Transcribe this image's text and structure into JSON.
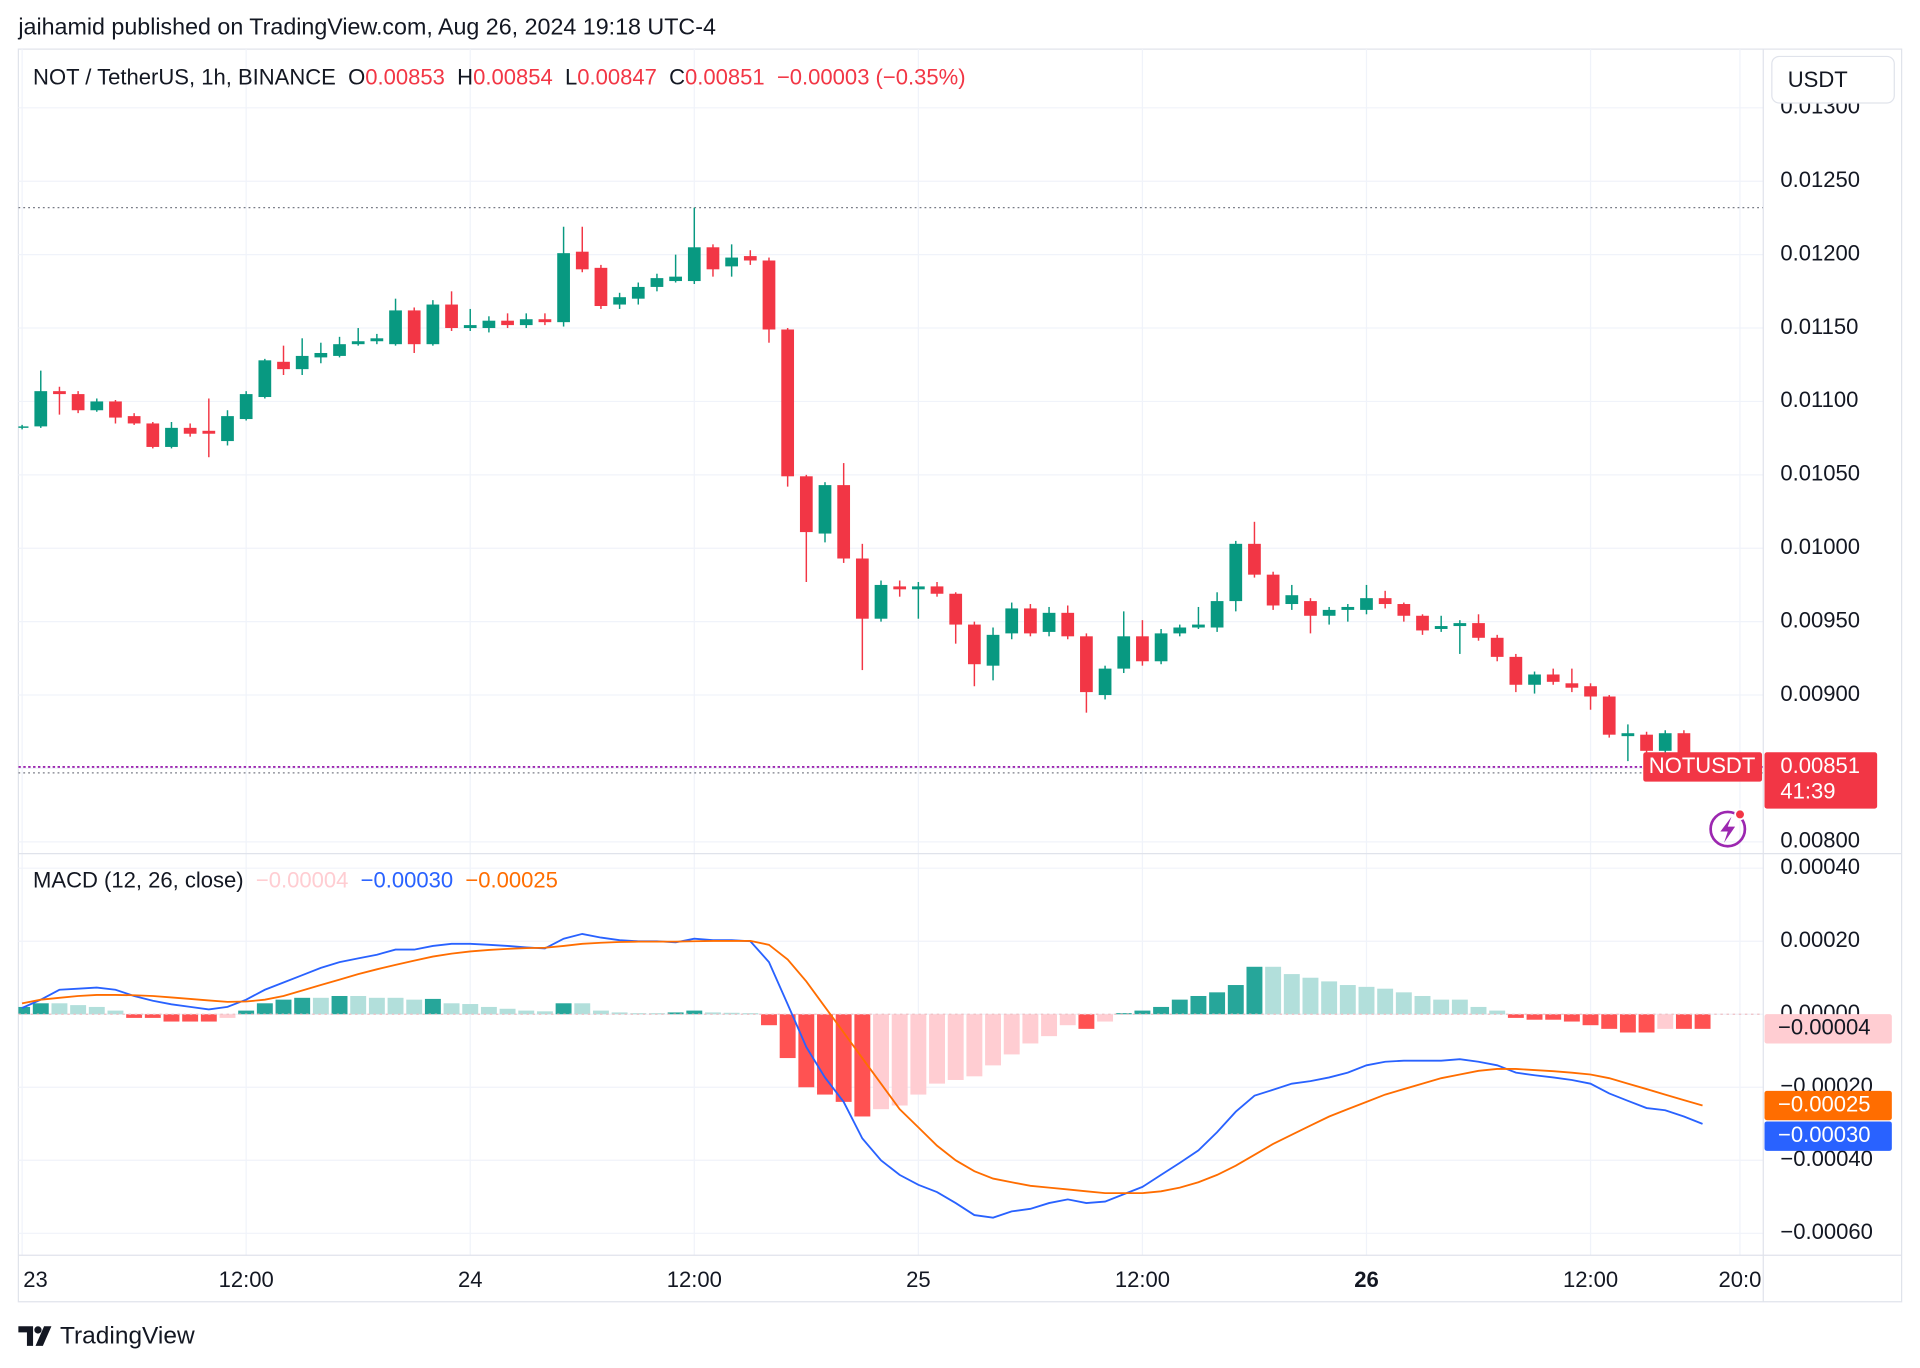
{
  "header": {
    "byline": "jaihamid published on TradingView.com, Aug 26, 2024 19:18 UTC-4",
    "footer": "TradingView"
  },
  "chart_data": {
    "type": "candlestick",
    "title": "NOT / TetherUS, 1h, BINANCE",
    "ohlc_labels": [
      "O",
      "H",
      "L",
      "C"
    ],
    "change_label": "−0.00003 (−0.35%)",
    "currency": "USDT",
    "symbol": "NOTUSDT",
    "countdown": "41:39",
    "up_color": "#089981",
    "down_color": "#f23645",
    "last_line_color": "#9c27b0",
    "range_line_color": "#787b86",
    "open": [
      0.01082,
      0.01083,
      0.01107,
      0.01105,
      0.01094,
      0.011,
      0.0109,
      0.01085,
      0.01069,
      0.01082,
      0.0108,
      0.01073,
      0.01088,
      0.01103,
      0.01127,
      0.01122,
      0.0113,
      0.01131,
      0.01139,
      0.01141,
      0.01139,
      0.01162,
      0.01139,
      0.01166,
      0.0115,
      0.0115,
      0.01155,
      0.01152,
      0.01156,
      0.01154,
      0.01202,
      0.01191,
      0.01166,
      0.0117,
      0.01178,
      0.01182,
      0.01182,
      0.01205,
      0.01192,
      0.01199,
      0.01196,
      0.01149,
      0.01049,
      0.0101,
      0.01043,
      0.00993,
      0.00952,
      0.00974,
      0.00972,
      0.00974,
      0.00969,
      0.00948,
      0.0092,
      0.00942,
      0.00959,
      0.00943,
      0.00956,
      0.0094,
      0.009,
      0.00918,
      0.0094,
      0.00923,
      0.00942,
      0.00946,
      0.00946,
      0.00964,
      0.01003,
      0.00982,
      0.00962,
      0.00964,
      0.00954,
      0.00958,
      0.00958,
      0.00966,
      0.00962,
      0.00954,
      0.00945,
      0.00947,
      0.00949,
      0.00939,
      0.00926,
      0.00907,
      0.00914,
      0.00908,
      0.00906,
      0.00899,
      0.00872,
      0.00873,
      0.00862,
      0.00874,
      0.00853
    ],
    "high": [
      0.01084,
      0.01121,
      0.0111,
      0.01107,
      0.01102,
      0.01101,
      0.01092,
      0.01086,
      0.01086,
      0.01085,
      0.01102,
      0.01094,
      0.01107,
      0.01129,
      0.01138,
      0.01143,
      0.0114,
      0.01144,
      0.0115,
      0.01146,
      0.0117,
      0.01164,
      0.01169,
      0.01175,
      0.01163,
      0.01158,
      0.0116,
      0.0116,
      0.0116,
      0.01219,
      0.01219,
      0.01193,
      0.01174,
      0.01181,
      0.01187,
      0.012,
      0.01232,
      0.01207,
      0.01207,
      0.01203,
      0.01198,
      0.0115,
      0.0105,
      0.01045,
      0.01058,
      0.01003,
      0.00978,
      0.00978,
      0.00977,
      0.00977,
      0.0097,
      0.0095,
      0.00946,
      0.00963,
      0.00962,
      0.0096,
      0.00961,
      0.00942,
      0.0092,
      0.00957,
      0.00951,
      0.00945,
      0.00948,
      0.0096,
      0.0097,
      0.01005,
      0.01018,
      0.00984,
      0.00975,
      0.00966,
      0.0096,
      0.00962,
      0.00975,
      0.00971,
      0.00963,
      0.00955,
      0.00954,
      0.00951,
      0.00955,
      0.00941,
      0.00928,
      0.00916,
      0.00918,
      0.00918,
      0.00908,
      0.009,
      0.0088,
      0.00875,
      0.00876,
      0.00876,
      0.00854
    ],
    "low": [
      0.01081,
      0.01082,
      0.01091,
      0.01092,
      0.01093,
      0.01085,
      0.01084,
      0.01068,
      0.01068,
      0.01076,
      0.01062,
      0.0107,
      0.01087,
      0.01102,
      0.01118,
      0.01118,
      0.01126,
      0.0113,
      0.01138,
      0.01139,
      0.01138,
      0.01133,
      0.01138,
      0.01148,
      0.01148,
      0.01147,
      0.0115,
      0.0115,
      0.01152,
      0.01151,
      0.01188,
      0.01163,
      0.01163,
      0.01166,
      0.01175,
      0.01181,
      0.0118,
      0.01185,
      0.01185,
      0.01193,
      0.0114,
      0.01042,
      0.00977,
      0.01004,
      0.0099,
      0.00917,
      0.0095,
      0.00967,
      0.00952,
      0.00967,
      0.00935,
      0.00906,
      0.0091,
      0.00938,
      0.0094,
      0.0094,
      0.00938,
      0.00888,
      0.00897,
      0.00915,
      0.0092,
      0.00921,
      0.0094,
      0.00945,
      0.00943,
      0.00957,
      0.0098,
      0.00958,
      0.00958,
      0.00942,
      0.00948,
      0.0095,
      0.00955,
      0.00959,
      0.0095,
      0.00941,
      0.00943,
      0.00928,
      0.00937,
      0.00923,
      0.00902,
      0.00901,
      0.00907,
      0.00902,
      0.0089,
      0.00871,
      0.00855,
      0.0086,
      0.00858,
      0.00851,
      0.00847
    ],
    "close": [
      0.01083,
      0.01107,
      0.01105,
      0.01094,
      0.011,
      0.01089,
      0.01085,
      0.01069,
      0.01082,
      0.01078,
      0.01078,
      0.0109,
      0.01105,
      0.01128,
      0.01122,
      0.01131,
      0.01133,
      0.01139,
      0.01141,
      0.01143,
      0.01162,
      0.01139,
      0.01166,
      0.0115,
      0.01152,
      0.01155,
      0.01152,
      0.01156,
      0.01154,
      0.01201,
      0.0119,
      0.01165,
      0.01171,
      0.01178,
      0.01184,
      0.01185,
      0.01205,
      0.0119,
      0.01198,
      0.01196,
      0.01149,
      0.01049,
      0.01011,
      0.01043,
      0.00993,
      0.00952,
      0.00975,
      0.00972,
      0.00974,
      0.00969,
      0.00948,
      0.00921,
      0.00941,
      0.00959,
      0.00942,
      0.00956,
      0.0094,
      0.00902,
      0.00918,
      0.0094,
      0.00923,
      0.00942,
      0.00946,
      0.00948,
      0.00964,
      0.01003,
      0.00982,
      0.00961,
      0.00968,
      0.00954,
      0.00958,
      0.0096,
      0.00966,
      0.00962,
      0.00954,
      0.00944,
      0.00947,
      0.00949,
      0.00939,
      0.00926,
      0.00907,
      0.00914,
      0.00909,
      0.00905,
      0.00899,
      0.00873,
      0.00874,
      0.00862,
      0.00874,
      0.00853,
      0.00851
    ],
    "ylim": [
      0.00792,
      0.0134
    ],
    "yticks": [
      {
        "value": 0.013,
        "label": "0.01300"
      },
      {
        "value": 0.0125,
        "label": "0.01250"
      },
      {
        "value": 0.012,
        "label": "0.01200"
      },
      {
        "value": 0.0115,
        "label": "0.01150"
      },
      {
        "value": 0.011,
        "label": "0.01100"
      },
      {
        "value": 0.0105,
        "label": "0.01050"
      },
      {
        "value": 0.01,
        "label": "0.01000"
      },
      {
        "value": 0.0095,
        "label": "0.00950"
      },
      {
        "value": 0.009,
        "label": "0.00900"
      },
      {
        "value": 0.0085,
        "label": "0.00850"
      },
      {
        "value": 0.008,
        "label": "0.00800"
      }
    ],
    "xlim": [
      -0.2,
      93.25
    ],
    "xticks": [
      {
        "value": 0,
        "label": "23"
      },
      {
        "value": 12,
        "label": "12:00"
      },
      {
        "value": 24,
        "label": "24"
      },
      {
        "value": 36,
        "label": "12:00"
      },
      {
        "value": 48,
        "label": "25"
      },
      {
        "value": 60,
        "label": "12:00"
      },
      {
        "value": 72,
        "label": "26"
      },
      {
        "value": 84,
        "label": "12:00"
      },
      {
        "value": 92,
        "label": "20:0"
      }
    ],
    "grid": true,
    "indicator": {
      "type": "macd",
      "title": "MACD (12, 26, close)",
      "ylim": [
        -0.00066,
        0.00044
      ],
      "yticks": [
        {
          "value": 0.0004,
          "label": "0.00040"
        },
        {
          "value": 0.0002,
          "label": "0.00020"
        },
        {
          "value": 0,
          "label": "0.00000"
        },
        {
          "value": -0.0002,
          "label": "−0.00020"
        },
        {
          "value": -0.0004,
          "label": "−0.00040"
        },
        {
          "value": -0.0006,
          "label": "−0.00060"
        }
      ],
      "histogram": {
        "colors": {
          "grow_above": "#26a69a",
          "fall_above": "#b2dfdb",
          "grow_below": "#ffcdd2",
          "fall_below": "#ff5252"
        },
        "last_label": "−0.00004",
        "values": [
          2e-05,
          3e-05,
          3e-05,
          2.5e-05,
          2e-05,
          1e-05,
          -1e-05,
          -1e-05,
          -2e-05,
          -2e-05,
          -2e-05,
          -1e-05,
          1e-05,
          3e-05,
          4e-05,
          4.5e-05,
          4.5e-05,
          5e-05,
          5e-05,
          4.5e-05,
          4.5e-05,
          4e-05,
          4.2e-05,
          3e-05,
          2.8e-05,
          2e-05,
          1.5e-05,
          1e-05,
          8e-06,
          3e-05,
          3e-05,
          1e-05,
          5e-06,
          3e-06,
          3e-06,
          5e-06,
          1e-05,
          5e-06,
          4e-06,
          3e-06,
          -3e-05,
          -0.00012,
          -0.0002,
          -0.00022,
          -0.00024,
          -0.00028,
          -0.00026,
          -0.00025,
          -0.00022,
          -0.00019,
          -0.00018,
          -0.00017,
          -0.00014,
          -0.00011,
          -8e-05,
          -6e-05,
          -3e-05,
          -4e-05,
          -2e-05,
          3e-06,
          1e-05,
          2e-05,
          4e-05,
          5e-05,
          6e-05,
          8e-05,
          0.00013,
          0.00013,
          0.00011,
          0.0001,
          9e-05,
          8e-05,
          7.5e-05,
          7e-05,
          6e-05,
          5e-05,
          4e-05,
          4e-05,
          2e-05,
          1e-05,
          -1e-05,
          -1.5e-05,
          -1.5e-05,
          -2e-05,
          -3e-05,
          -4e-05,
          -5e-05,
          -5e-05,
          -4e-05,
          -4e-05,
          -4e-05
        ]
      },
      "series": [
        {
          "color": "#2962ff",
          "last_label": "−0.00030",
          "values": [
            1.7e-05,
            4e-05,
            6.7e-05,
            7e-05,
            7.3e-05,
            6.7e-05,
            5e-05,
            3.7e-05,
            2.7e-05,
            2e-05,
            1.3e-05,
            2e-05,
            4e-05,
            6.7e-05,
            8.7e-05,
            0.000107,
            0.000127,
            0.000143,
            0.000153,
            0.000163,
            0.000177,
            0.000177,
            0.000187,
            0.000193,
            0.000193,
            0.00019,
            0.000187,
            0.000183,
            0.00018,
            0.000207,
            0.00022,
            0.00021,
            0.000203,
            0.0002,
            0.0002,
            0.000197,
            0.000207,
            0.000203,
            0.000203,
            0.0002,
            0.000143,
            2.7e-05,
            -9e-05,
            -0.000173,
            -0.00024,
            -0.00034,
            -0.0004,
            -0.00044,
            -0.000467,
            -0.000487,
            -0.000517,
            -0.00055,
            -0.000557,
            -0.00054,
            -0.000533,
            -0.000517,
            -0.000507,
            -0.000517,
            -0.000513,
            -0.000493,
            -0.000473,
            -0.00044,
            -0.000407,
            -0.000373,
            -0.000323,
            -0.000267,
            -0.000223,
            -0.000207,
            -0.00019,
            -0.000183,
            -0.000173,
            -0.00016,
            -0.00014,
            -0.00013,
            -0.000127,
            -0.000127,
            -0.000127,
            -0.000123,
            -0.00013,
            -0.00014,
            -0.00016,
            -0.000167,
            -0.000173,
            -0.00018,
            -0.00019,
            -0.000217,
            -0.000237,
            -0.000257,
            -0.000263,
            -0.00028,
            -0.0003
          ]
        },
        {
          "color": "#ff6d00",
          "last_label": "−0.00025",
          "values": [
            3e-05,
            4e-05,
            4.5e-05,
            5e-05,
            5.3e-05,
            5.3e-05,
            5.2e-05,
            5e-05,
            4.6e-05,
            4.2e-05,
            3.8e-05,
            3.4e-05,
            3.5e-05,
            4e-05,
            5e-05,
            6.5e-05,
            8e-05,
            9.5e-05,
            0.00011,
            0.000123,
            0.000135,
            0.000147,
            0.000158,
            0.000166,
            0.000172,
            0.000176,
            0.000179,
            0.000181,
            0.000182,
            0.000187,
            0.000193,
            0.000196,
            0.000198,
            0.000199,
            0.000199,
            0.000199,
            0.0002,
            0.000201,
            0.000201,
            0.000201,
            0.00019,
            0.00015,
            9e-05,
            2e-05,
            -5e-05,
            -0.00012,
            -0.00019,
            -0.00026,
            -0.00031,
            -0.00036,
            -0.0004,
            -0.00043,
            -0.00045,
            -0.00046,
            -0.00047,
            -0.000475,
            -0.00048,
            -0.000485,
            -0.00049,
            -0.00049,
            -0.00049,
            -0.000485,
            -0.000475,
            -0.00046,
            -0.00044,
            -0.000415,
            -0.000385,
            -0.000355,
            -0.00033,
            -0.000305,
            -0.00028,
            -0.00026,
            -0.00024,
            -0.00022,
            -0.000205,
            -0.00019,
            -0.000175,
            -0.000165,
            -0.000155,
            -0.00015,
            -0.00015,
            -0.000153,
            -0.000156,
            -0.00016,
            -0.000165,
            -0.000175,
            -0.00019,
            -0.000205,
            -0.00022,
            -0.000235,
            -0.00025
          ]
        }
      ]
    }
  }
}
